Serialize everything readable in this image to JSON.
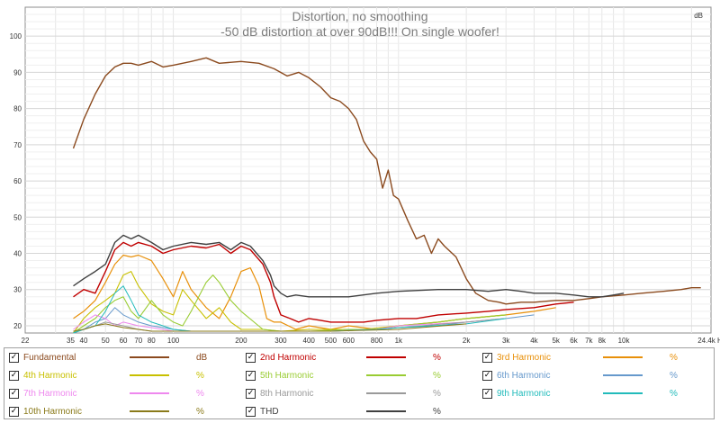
{
  "chart_data": {
    "type": "line",
    "title": "Distortion, no smoothing",
    "subtitle": "-50 dB distortion at over 90dB!!!  On single woofer!",
    "ylabel": "dB",
    "xunit": "Hz",
    "x_scale": "log",
    "xlim": [
      22,
      24400
    ],
    "ylim": [
      18,
      108
    ],
    "grid": true,
    "x_tick_labels": [
      {
        "v": 22,
        "t": "22"
      },
      {
        "v": 35,
        "t": "35"
      },
      {
        "v": 40,
        "t": "40"
      },
      {
        "v": 50,
        "t": "50"
      },
      {
        "v": 60,
        "t": "60"
      },
      {
        "v": 70,
        "t": "70"
      },
      {
        "v": 80,
        "t": "80"
      },
      {
        "v": 100,
        "t": "100"
      },
      {
        "v": 200,
        "t": "200"
      },
      {
        "v": 300,
        "t": "300"
      },
      {
        "v": 400,
        "t": "400"
      },
      {
        "v": 500,
        "t": "500"
      },
      {
        "v": 600,
        "t": "600"
      },
      {
        "v": 800,
        "t": "800"
      },
      {
        "v": 1000,
        "t": "1k"
      },
      {
        "v": 2000,
        "t": "2k"
      },
      {
        "v": 3000,
        "t": "3k"
      },
      {
        "v": 4000,
        "t": "4k"
      },
      {
        "v": 5000,
        "t": "5k"
      },
      {
        "v": 6000,
        "t": "6k"
      },
      {
        "v": 7000,
        "t": "7k"
      },
      {
        "v": 8000,
        "t": "8k"
      },
      {
        "v": 10000,
        "t": "10k"
      },
      {
        "v": 24400,
        "t": "24.4k Hz"
      }
    ],
    "y_ticks": [
      20,
      30,
      40,
      50,
      60,
      70,
      80,
      90,
      100
    ],
    "series": [
      {
        "name": "Fundamental",
        "unit": "dB",
        "color": "#8b4a1e",
        "width": 1.4,
        "x": [
          36,
          40,
          45,
          50,
          55,
          60,
          65,
          70,
          80,
          90,
          100,
          120,
          140,
          160,
          200,
          240,
          280,
          320,
          360,
          400,
          450,
          500,
          550,
          600,
          650,
          700,
          750,
          800,
          850,
          900,
          950,
          1000,
          1100,
          1200,
          1300,
          1400,
          1500,
          1600,
          1800,
          2000,
          2200,
          2500,
          2800,
          3000,
          3500,
          4000,
          5000,
          6000,
          7000,
          8000,
          10000,
          12000,
          15000,
          18000,
          20000,
          22000
        ],
        "y": [
          69,
          77,
          84,
          89,
          91.5,
          92.5,
          92.5,
          92,
          93,
          91.5,
          92,
          93,
          94,
          92.5,
          93,
          92.5,
          91,
          89,
          90,
          88.5,
          86,
          83,
          82,
          80,
          77,
          71,
          68,
          66,
          58,
          63,
          56,
          55,
          49,
          44,
          45,
          40,
          44,
          42,
          39,
          33,
          29,
          27,
          26.5,
          26,
          26.5,
          26.5,
          27,
          27,
          27.5,
          28,
          28.5,
          29,
          29.5,
          30,
          30.5,
          30.5
        ]
      },
      {
        "name": "2nd Harmonic",
        "unit": "%",
        "color": "#c00000",
        "width": 1.4,
        "x": [
          36,
          40,
          45,
          50,
          55,
          60,
          65,
          70,
          80,
          90,
          100,
          120,
          140,
          160,
          180,
          200,
          220,
          250,
          270,
          280,
          300,
          330,
          360,
          400,
          450,
          500,
          600,
          700,
          800,
          1000,
          1200,
          1500,
          2000,
          2500,
          3000,
          4000,
          5000,
          6000
        ],
        "y": [
          28,
          30,
          29,
          35,
          41,
          43,
          42,
          43,
          42,
          40,
          41,
          42,
          41.5,
          42.5,
          40,
          42,
          41,
          37,
          32,
          28,
          23,
          22,
          21,
          22,
          21.5,
          21,
          21,
          21,
          21.5,
          22,
          22,
          23,
          23.5,
          24,
          24.5,
          25,
          26,
          26.5
        ]
      },
      {
        "name": "3rd Harmonic",
        "unit": "%",
        "color": "#e8900a",
        "width": 1.2,
        "x": [
          36,
          40,
          45,
          50,
          55,
          60,
          65,
          70,
          80,
          90,
          100,
          110,
          120,
          140,
          160,
          180,
          200,
          220,
          240,
          260,
          280,
          300,
          350,
          400,
          500,
          600,
          800,
          1000,
          1500,
          2000,
          3000,
          4000,
          5000
        ],
        "y": [
          22,
          24,
          27,
          32,
          37,
          39.5,
          39,
          39.5,
          38,
          33,
          28,
          35,
          30,
          25,
          22,
          28,
          35,
          36,
          31,
          22,
          21,
          21,
          19,
          20,
          19,
          20,
          19,
          20,
          21,
          22,
          23,
          24,
          25
        ]
      },
      {
        "name": "4th Harmonic",
        "unit": "%",
        "color": "#c8c000",
        "width": 1.1,
        "x": [
          36,
          40,
          45,
          50,
          55,
          60,
          65,
          70,
          80,
          90,
          100,
          110,
          120,
          140,
          160,
          180,
          200,
          250,
          300,
          400,
          500,
          700,
          1000,
          1500,
          2000,
          3000
        ],
        "y": [
          18,
          22,
          25,
          27,
          29,
          34,
          35,
          31,
          26,
          24,
          23,
          30,
          27,
          22,
          25,
          21,
          19,
          19,
          18.5,
          19,
          19,
          19,
          20,
          21,
          22,
          23
        ]
      },
      {
        "name": "5th Harmonic",
        "unit": "%",
        "color": "#99cc33",
        "width": 1.1,
        "x": [
          36,
          40,
          45,
          50,
          55,
          60,
          65,
          70,
          80,
          90,
          100,
          110,
          120,
          140,
          150,
          160,
          180,
          200,
          250,
          300,
          400,
          600,
          800,
          1000,
          1500,
          2000,
          3000
        ],
        "y": [
          18,
          20,
          22,
          25,
          27,
          28,
          24,
          22,
          27,
          23,
          21,
          20,
          24,
          32,
          34,
          32,
          27,
          24,
          19,
          18.5,
          18.5,
          19,
          19,
          20,
          21,
          22,
          23
        ]
      },
      {
        "name": "6th Harmonic",
        "unit": "%",
        "color": "#6699cc",
        "width": 1.0,
        "x": [
          36,
          40,
          45,
          50,
          55,
          60,
          70,
          80,
          90,
          100,
          120,
          150,
          200,
          300,
          500,
          800,
          1000,
          1500,
          2000,
          3000,
          4000
        ],
        "y": [
          18,
          19,
          21,
          22,
          25,
          23,
          21,
          20,
          19.5,
          19,
          18.5,
          18.5,
          18.5,
          18.5,
          18.5,
          19,
          19.5,
          20,
          21,
          22,
          23
        ]
      },
      {
        "name": "7th Harmonic",
        "unit": "%",
        "color": "#ee88ee",
        "width": 1.0,
        "x": [
          36,
          40,
          45,
          50,
          55,
          60,
          70,
          80,
          90,
          100,
          120,
          150,
          200,
          300,
          500,
          800,
          1000,
          2000,
          3000
        ],
        "y": [
          19,
          21,
          23,
          22,
          20,
          21,
          20,
          19.5,
          19,
          18.5,
          18.5,
          18.5,
          18.5,
          18.5,
          18.5,
          19,
          20,
          21,
          22
        ]
      },
      {
        "name": "8th Harmonic",
        "unit": "%",
        "color": "#9a9a9a",
        "width": 1.0,
        "x": [
          36,
          40,
          45,
          50,
          60,
          70,
          80,
          100,
          150,
          200,
          300,
          500,
          800,
          1000,
          2000,
          3000
        ],
        "y": [
          18.5,
          19,
          20,
          21,
          20,
          19,
          18.5,
          18.5,
          18.5,
          18.5,
          18.5,
          18.5,
          19,
          19.5,
          21,
          22
        ]
      },
      {
        "name": "9th Harmonic",
        "unit": "%",
        "color": "#22bbbb",
        "width": 1.0,
        "x": [
          36,
          40,
          45,
          50,
          55,
          60,
          65,
          70,
          80,
          90,
          100,
          120,
          150,
          200,
          300,
          500,
          800,
          1000,
          2000,
          3000
        ],
        "y": [
          18,
          19,
          20,
          24,
          29,
          31,
          27,
          23,
          21,
          20,
          19,
          18.5,
          18.5,
          18.5,
          18.5,
          18.5,
          19,
          19.5,
          20.5,
          22
        ]
      },
      {
        "name": "10th Harmonic",
        "unit": "%",
        "color": "#8a7a1a",
        "width": 1.0,
        "x": [
          36,
          40,
          45,
          50,
          60,
          70,
          80,
          100,
          150,
          200,
          300,
          500,
          1000,
          2000
        ],
        "y": [
          18.5,
          19,
          20,
          20.5,
          19.5,
          19,
          18.5,
          18.5,
          18.5,
          18.5,
          18.5,
          18.5,
          19,
          20.5
        ]
      },
      {
        "name": "THD",
        "unit": "%",
        "color": "#404040",
        "width": 1.4,
        "x": [
          36,
          40,
          45,
          50,
          55,
          60,
          65,
          70,
          80,
          90,
          100,
          120,
          140,
          160,
          180,
          200,
          220,
          250,
          270,
          280,
          300,
          320,
          350,
          400,
          500,
          600,
          800,
          1000,
          1500,
          2000,
          2500,
          3000,
          3500,
          4000,
          5000,
          6000,
          7000,
          8000,
          9000,
          10000
        ],
        "y": [
          31,
          33,
          35,
          37,
          43,
          45,
          44,
          45,
          43,
          41,
          42,
          43,
          42.5,
          43,
          41,
          43,
          42,
          38,
          34,
          31,
          29,
          28,
          28.5,
          28,
          28,
          28,
          29,
          29.5,
          30,
          30,
          29.5,
          30,
          29.5,
          29,
          29,
          28.5,
          28,
          28,
          28.5,
          29
        ]
      }
    ]
  },
  "legend": [
    {
      "name": "Fundamental",
      "unit": "dB",
      "checked": "✓",
      "color": "#8b4a1e"
    },
    {
      "name": "2nd Harmonic",
      "unit": "%",
      "checked": "✓",
      "color": "#c00000"
    },
    {
      "name": "3rd Harmonic",
      "unit": "%",
      "checked": "✓",
      "color": "#e8900a"
    },
    {
      "name": "4th Harmonic",
      "unit": "%",
      "checked": "✓",
      "color": "#c8c000"
    },
    {
      "name": "5th Harmonic",
      "unit": "%",
      "checked": "✓",
      "color": "#99cc33"
    },
    {
      "name": "6th Harmonic",
      "unit": "%",
      "checked": "✓",
      "color": "#6699cc"
    },
    {
      "name": "7th Harmonic",
      "unit": "%",
      "checked": "✓",
      "color": "#ee88ee"
    },
    {
      "name": "8th Harmonic",
      "unit": "%",
      "checked": "✓",
      "color": "#9a9a9a"
    },
    {
      "name": "9th Harmonic",
      "unit": "%",
      "checked": "✓",
      "color": "#22bbbb"
    },
    {
      "name": "10th Harmonic",
      "unit": "%",
      "checked": "✓",
      "color": "#8a7a1a"
    },
    {
      "name": "THD",
      "unit": "%",
      "checked": "✓",
      "color": "#404040"
    }
  ]
}
